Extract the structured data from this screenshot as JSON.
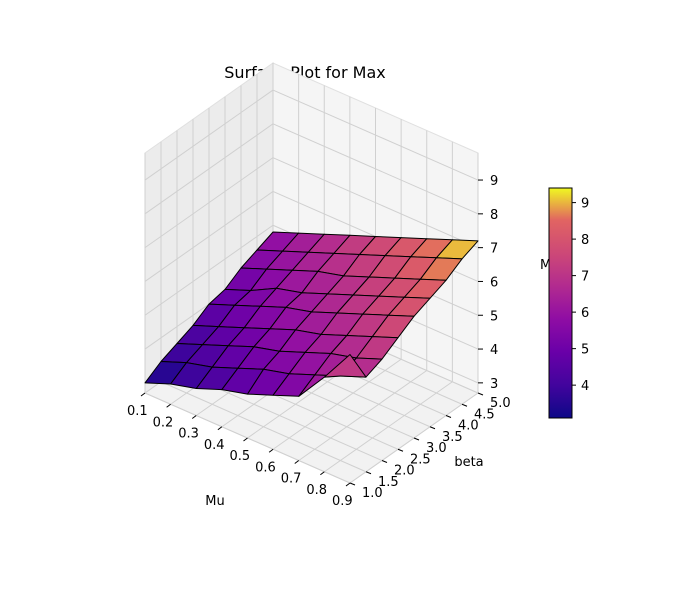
{
  "chart_data": {
    "type": "surface",
    "title": "Surface Plot for Max",
    "xlabel": "Mu",
    "ylabel": "beta",
    "zlabel": "Max",
    "x": [
      0.1,
      0.2,
      0.3,
      0.4,
      0.5,
      0.6,
      0.7,
      0.8,
      0.9
    ],
    "y": [
      1.0,
      1.5,
      2.0,
      2.5,
      3.0,
      3.5,
      4.0,
      4.5,
      5.0
    ],
    "x_ticks": [
      "0.1",
      "0.2",
      "0.3",
      "0.4",
      "0.5",
      "0.6",
      "0.7",
      "0.8",
      "0.9"
    ],
    "y_ticks": [
      "1.0",
      "1.5",
      "2.0",
      "2.5",
      "3.0",
      "3.5",
      "4.0",
      "4.5",
      "5.0"
    ],
    "z_ticks": [
      "3",
      "4",
      "5",
      "6",
      "7",
      "8",
      "9"
    ],
    "xlim": [
      0.1,
      0.9
    ],
    "ylim": [
      1.0,
      5.0
    ],
    "zlim": [
      2.7,
      9.8
    ],
    "z_grid": [
      [
        3.0,
        3.3,
        3.5,
        3.7,
        4.0,
        4.1,
        4.4,
        4.6,
        4.8
      ],
      [
        3.3,
        3.6,
        3.8,
        4.0,
        4.3,
        4.4,
        4.7,
        4.9,
        5.1
      ],
      [
        3.5,
        3.8,
        4.1,
        4.3,
        4.6,
        4.8,
        5.0,
        5.2,
        5.4
      ],
      [
        3.8,
        4.1,
        4.4,
        4.6,
        4.9,
        5.0,
        5.3,
        5.5,
        5.7
      ],
      [
        4.0,
        4.4,
        4.6,
        4.9,
        5.1,
        5.3,
        5.5,
        5.8,
        6.0
      ],
      [
        4.3,
        4.6,
        4.9,
        5.1,
        5.4,
        5.6,
        5.8,
        6.1,
        6.3
      ],
      [
        4.6,
        4.9,
        5.2,
        5.4,
        5.7,
        5.9,
        6.1,
        6.4,
        6.6
      ],
      [
        5.5,
        5.2,
        5.4,
        5.7,
        6.0,
        6.2,
        6.4,
        6.7,
        6.9
      ],
      [
        6.5,
        5.5,
        5.7,
        6.0,
        6.3,
        6.5,
        6.7,
        7.0,
        7.2
      ]
    ],
    "colormap": "plasma",
    "colorbar": {
      "min": 3.1,
      "max": 9.4,
      "ticks": [
        "4",
        "5",
        "6",
        "7",
        "8",
        "9"
      ],
      "placement": "right"
    },
    "grid": true
  }
}
